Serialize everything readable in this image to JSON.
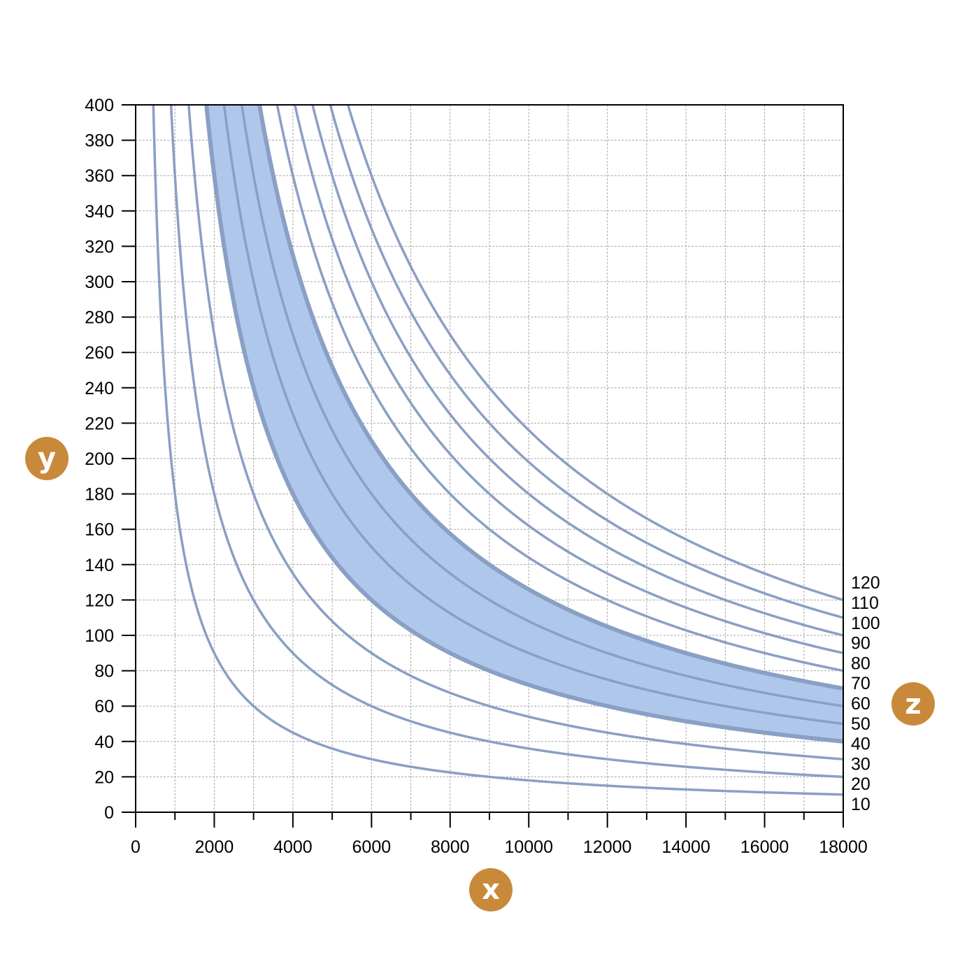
{
  "chart_data": {
    "type": "line",
    "title": "",
    "xlabel": "x",
    "ylabel": "y",
    "zlabel": "z",
    "xlim": [
      0,
      18000
    ],
    "ylim": [
      0,
      400
    ],
    "x_ticks": [
      0,
      2000,
      4000,
      6000,
      8000,
      10000,
      12000,
      14000,
      16000,
      18000
    ],
    "x_tick_labels": [
      "0",
      "2000",
      "4000",
      "6000",
      "8000",
      "10000",
      "12000",
      "14000",
      "16000",
      "18000"
    ],
    "y_ticks": [
      0,
      20,
      40,
      60,
      80,
      100,
      120,
      140,
      160,
      180,
      200,
      220,
      240,
      260,
      280,
      300,
      320,
      340,
      360,
      380,
      400
    ],
    "y_tick_labels": [
      "0",
      "20",
      "40",
      "60",
      "80",
      "100",
      "120",
      "140",
      "160",
      "180",
      "200",
      "220",
      "240",
      "260",
      "280",
      "300",
      "320",
      "340",
      "360",
      "380",
      "400"
    ],
    "grid": true,
    "relation": "y = 18000 * z / x (curves of constant z)",
    "series": [
      {
        "name": "10",
        "z": 10,
        "x": [
          450,
          2000,
          4000,
          6000,
          9000,
          12000,
          18000
        ],
        "y": [
          400,
          90,
          45,
          30,
          20,
          15,
          10
        ]
      },
      {
        "name": "20",
        "z": 20,
        "x": [
          900,
          2000,
          4000,
          6000,
          9000,
          12000,
          18000
        ],
        "y": [
          400,
          180,
          90,
          60,
          40,
          30,
          20
        ]
      },
      {
        "name": "30",
        "z": 30,
        "x": [
          1350,
          2000,
          4000,
          6000,
          9000,
          12000,
          18000
        ],
        "y": [
          400,
          270,
          135,
          90,
          60,
          45,
          30
        ]
      },
      {
        "name": "40",
        "z": 40,
        "x": [
          1800,
          2000,
          4000,
          6000,
          9000,
          12000,
          18000
        ],
        "y": [
          400,
          360,
          180,
          120,
          80,
          60,
          40
        ]
      },
      {
        "name": "50",
        "z": 50,
        "x": [
          2250,
          4000,
          6000,
          9000,
          12000,
          18000
        ],
        "y": [
          400,
          225,
          150,
          100,
          75,
          50
        ]
      },
      {
        "name": "60",
        "z": 60,
        "x": [
          2700,
          4000,
          6000,
          9000,
          12000,
          18000
        ],
        "y": [
          400,
          270,
          180,
          120,
          90,
          60
        ]
      },
      {
        "name": "70",
        "z": 70,
        "x": [
          3150,
          4000,
          6000,
          9000,
          12000,
          18000
        ],
        "y": [
          400,
          315,
          210,
          140,
          105,
          70
        ]
      },
      {
        "name": "80",
        "z": 80,
        "x": [
          3600,
          4000,
          6000,
          9000,
          12000,
          18000
        ],
        "y": [
          400,
          360,
          240,
          160,
          120,
          80
        ]
      },
      {
        "name": "90",
        "z": 90,
        "x": [
          4050,
          6000,
          9000,
          12000,
          18000
        ],
        "y": [
          400,
          270,
          180,
          135,
          90
        ]
      },
      {
        "name": "100",
        "z": 100,
        "x": [
          4500,
          6000,
          9000,
          12000,
          18000
        ],
        "y": [
          400,
          300,
          200,
          150,
          100
        ]
      },
      {
        "name": "110",
        "z": 110,
        "x": [
          4950,
          6000,
          9000,
          12000,
          18000
        ],
        "y": [
          400,
          330,
          220,
          165,
          110
        ]
      },
      {
        "name": "120",
        "z": 120,
        "x": [
          5400,
          6000,
          9000,
          12000,
          18000
        ],
        "y": [
          400,
          360,
          240,
          180,
          120
        ]
      }
    ],
    "highlight_band": {
      "z_min": 40,
      "z_max": 70,
      "color": "#aec7ea",
      "edge_color": "#8a9fc4"
    },
    "line_color": "#8a9fc4",
    "badge_color": "#c9893a"
  }
}
